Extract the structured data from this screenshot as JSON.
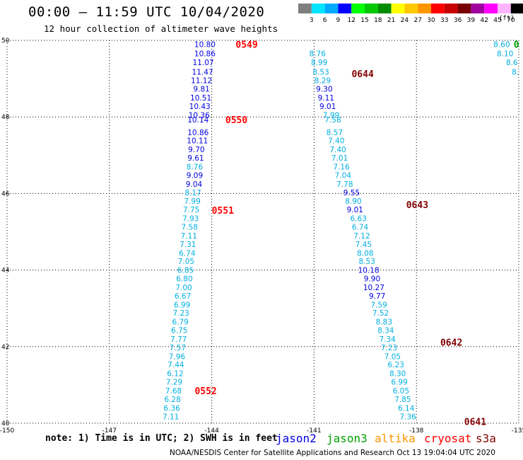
{
  "header": {
    "title": "00:00 – 11:59 UTC 10/04/2020",
    "subtitle": "12 hour collection of altimeter wave heights"
  },
  "colorbar": {
    "levels": [
      "3",
      "6",
      "9",
      "12",
      "15",
      "18",
      "21",
      "24",
      "27",
      "30",
      "33",
      "36",
      "39",
      "42",
      "45",
      "70"
    ],
    "colors": [
      "#7f7f7f",
      "#00e5ff",
      "#00aaff",
      "#0000ff",
      "#00ff00",
      "#00c800",
      "#008c00",
      "#ffff00",
      "#ffc800",
      "#ff9600",
      "#ff0000",
      "#c80000",
      "#780000",
      "#a000a0",
      "#ff00ff",
      "#ffb4ff",
      "#000000"
    ],
    "units": "(ft)"
  },
  "footer": {
    "note": "note: 1) Time is in UTC; 2) SWH is in feet",
    "credit": "NOAA/NESDIS Center for Satellite Applications and Research   Oct 13 19:04:04 UTC 2020"
  },
  "satellites": [
    {
      "name": "jason2",
      "color": "#0000e0"
    },
    {
      "name": "jason3",
      "color": "#00a000"
    },
    {
      "name": "altika",
      "color": "#ff9600"
    },
    {
      "name": "cryosat",
      "color": "#ff0000"
    },
    {
      "name": "s3a",
      "color": "#800000"
    }
  ],
  "chart_data": {
    "type": "scatter",
    "xlim": [
      -150,
      -135
    ],
    "ylim": [
      40,
      50
    ],
    "xticks": [
      "-150",
      "-147",
      "-144",
      "-141",
      "-138",
      "-135"
    ],
    "yticks": [
      "40",
      "42",
      "44",
      "46",
      "48",
      "50"
    ],
    "grid": true,
    "tracks": [
      {
        "satellite": "cryosat",
        "labels": [
          {
            "text": "0549",
            "lon": -143.3,
            "lat": 49.9
          },
          {
            "text": "0550",
            "lon": -143.6,
            "lat": 47.93
          },
          {
            "text": "0551",
            "lon": -144.0,
            "lat": 45.56
          },
          {
            "text": "0552",
            "lon": -144.5,
            "lat": 40.85
          }
        ],
        "points": [
          {
            "v": "10.80",
            "lon": -144.2,
            "lat": 49.9,
            "c": "#0000e0"
          },
          {
            "v": "10.86",
            "lon": -144.2,
            "lat": 49.66,
            "c": "#0000e0"
          },
          {
            "v": "11.07",
            "lon": -144.25,
            "lat": 49.43,
            "c": "#0000e0"
          },
          {
            "v": "11.47",
            "lon": -144.27,
            "lat": 49.18,
            "c": "#0000e0"
          },
          {
            "v": "11.12",
            "lon": -144.3,
            "lat": 48.96,
            "c": "#0000e0"
          },
          {
            "v": "9.81",
            "lon": -144.3,
            "lat": 48.73,
            "c": "#0000e0"
          },
          {
            "v": "10.51",
            "lon": -144.32,
            "lat": 48.5,
            "c": "#0000e0"
          },
          {
            "v": "10.43",
            "lon": -144.35,
            "lat": 48.28,
            "c": "#0000e0"
          },
          {
            "v": "10.36",
            "lon": -144.37,
            "lat": 48.05,
            "c": "#0000e0"
          },
          {
            "v": "10.14",
            "lon": -144.4,
            "lat": 47.93,
            "c": "#0000e0"
          },
          {
            "v": "10.86",
            "lon": -144.4,
            "lat": 47.6,
            "c": "#0000e0"
          },
          {
            "v": "10.11",
            "lon": -144.42,
            "lat": 47.38,
            "c": "#0000e0"
          },
          {
            "v": "9.70",
            "lon": -144.45,
            "lat": 47.15,
            "c": "#0000e0"
          },
          {
            "v": "9.61",
            "lon": -144.47,
            "lat": 46.93,
            "c": "#0000e0"
          },
          {
            "v": "8.76",
            "lon": -144.5,
            "lat": 46.7,
            "c": "#00b0e0"
          },
          {
            "v": "9.09",
            "lon": -144.5,
            "lat": 46.48,
            "c": "#0000e0"
          },
          {
            "v": "9.04",
            "lon": -144.52,
            "lat": 46.25,
            "c": "#0000e0"
          },
          {
            "v": "8.17",
            "lon": -144.55,
            "lat": 46.03,
            "c": "#00b0e0"
          },
          {
            "v": "7.99",
            "lon": -144.57,
            "lat": 45.8,
            "c": "#00b0e0"
          },
          {
            "v": "7.75",
            "lon": -144.6,
            "lat": 45.58,
            "c": "#00b0e0"
          },
          {
            "v": "7.93",
            "lon": -144.62,
            "lat": 45.35,
            "c": "#00b0e0"
          },
          {
            "v": "7.58",
            "lon": -144.65,
            "lat": 45.13,
            "c": "#00b0e0"
          },
          {
            "v": "7.11",
            "lon": -144.67,
            "lat": 44.9,
            "c": "#00b0e0"
          },
          {
            "v": "7.31",
            "lon": -144.7,
            "lat": 44.68,
            "c": "#00b0e0"
          },
          {
            "v": "6.74",
            "lon": -144.72,
            "lat": 44.45,
            "c": "#00b0e0"
          },
          {
            "v": "7.05",
            "lon": -144.75,
            "lat": 44.23,
            "c": "#00b0e0"
          },
          {
            "v": "6.85",
            "lon": -144.77,
            "lat": 44.0,
            "c": "#00b0e0"
          },
          {
            "v": "6.80",
            "lon": -144.8,
            "lat": 43.78,
            "c": "#00b0e0"
          },
          {
            "v": "7.00",
            "lon": -144.82,
            "lat": 43.55,
            "c": "#00b0e0"
          },
          {
            "v": "6.67",
            "lon": -144.85,
            "lat": 43.33,
            "c": "#00b0e0"
          },
          {
            "v": "6.99",
            "lon": -144.87,
            "lat": 43.1,
            "c": "#00b0e0"
          },
          {
            "v": "7.23",
            "lon": -144.9,
            "lat": 42.88,
            "c": "#00b0e0"
          },
          {
            "v": "6.79",
            "lon": -144.92,
            "lat": 42.65,
            "c": "#00b0e0"
          },
          {
            "v": "6.75",
            "lon": -144.95,
            "lat": 42.43,
            "c": "#00b0e0"
          },
          {
            "v": "7.77",
            "lon": -144.97,
            "lat": 42.2,
            "c": "#00b0e0"
          },
          {
            "v": "7.57",
            "lon": -145.0,
            "lat": 41.98,
            "c": "#00b0e0"
          },
          {
            "v": "7.96",
            "lon": -145.02,
            "lat": 41.75,
            "c": "#00b0e0"
          },
          {
            "v": "7.44",
            "lon": -145.05,
            "lat": 41.53,
            "c": "#00b0e0"
          },
          {
            "v": "6.12",
            "lon": -145.07,
            "lat": 41.3,
            "c": "#00b0e0"
          },
          {
            "v": "7.29",
            "lon": -145.1,
            "lat": 41.08,
            "c": "#00b0e0"
          },
          {
            "v": "7.68",
            "lon": -145.12,
            "lat": 40.85,
            "c": "#00b0e0"
          },
          {
            "v": "6.28",
            "lon": -145.15,
            "lat": 40.63,
            "c": "#00b0e0"
          },
          {
            "v": "6.36",
            "lon": -145.17,
            "lat": 40.4,
            "c": "#00b0e0"
          },
          {
            "v": "7.11",
            "lon": -145.2,
            "lat": 40.18,
            "c": "#00b0e0"
          }
        ]
      },
      {
        "satellite": "s3a",
        "labels": [
          {
            "text": "0644",
            "lon": -139.9,
            "lat": 49.13
          },
          {
            "text": "0643",
            "lon": -138.3,
            "lat": 45.71
          },
          {
            "text": "0642",
            "lon": -137.3,
            "lat": 42.12
          },
          {
            "text": "0641",
            "lon": -136.6,
            "lat": 40.05
          }
        ],
        "points": [
          {
            "v": "8.76",
            "lon": -140.9,
            "lat": 49.66,
            "c": "#00b0e0"
          },
          {
            "v": "8.99",
            "lon": -140.85,
            "lat": 49.43,
            "c": "#00b0e0"
          },
          {
            "v": "8.53",
            "lon": -140.8,
            "lat": 49.18,
            "c": "#00b0e0"
          },
          {
            "v": "8.29",
            "lon": -140.75,
            "lat": 48.96,
            "c": "#00b0e0"
          },
          {
            "v": "9.30",
            "lon": -140.7,
            "lat": 48.73,
            "c": "#0000e0"
          },
          {
            "v": "9.11",
            "lon": -140.65,
            "lat": 48.5,
            "c": "#0000e0"
          },
          {
            "v": "9.01",
            "lon": -140.6,
            "lat": 48.28,
            "c": "#0000e0"
          },
          {
            "v": "7.99",
            "lon": -140.5,
            "lat": 48.05,
            "c": "#00b0e0"
          },
          {
            "v": "7.58",
            "lon": -140.45,
            "lat": 47.93,
            "c": "#00b0e0"
          },
          {
            "v": "8.57",
            "lon": -140.4,
            "lat": 47.6,
            "c": "#00b0e0"
          },
          {
            "v": "7.40",
            "lon": -140.35,
            "lat": 47.38,
            "c": "#00b0e0"
          },
          {
            "v": "7.40",
            "lon": -140.3,
            "lat": 47.15,
            "c": "#00b0e0"
          },
          {
            "v": "7.01",
            "lon": -140.25,
            "lat": 46.93,
            "c": "#00b0e0"
          },
          {
            "v": "7.16",
            "lon": -140.2,
            "lat": 46.7,
            "c": "#00b0e0"
          },
          {
            "v": "7.04",
            "lon": -140.15,
            "lat": 46.48,
            "c": "#00b0e0"
          },
          {
            "v": "7.78",
            "lon": -140.1,
            "lat": 46.25,
            "c": "#00b0e0"
          },
          {
            "v": "9.55",
            "lon": -139.9,
            "lat": 46.03,
            "c": "#0000e0"
          },
          {
            "v": "8.90",
            "lon": -139.85,
            "lat": 45.8,
            "c": "#00b0e0"
          },
          {
            "v": "9.01",
            "lon": -139.8,
            "lat": 45.58,
            "c": "#0000e0"
          },
          {
            "v": "6.63",
            "lon": -139.7,
            "lat": 45.35,
            "c": "#00b0e0"
          },
          {
            "v": "6.74",
            "lon": -139.65,
            "lat": 45.13,
            "c": "#00b0e0"
          },
          {
            "v": "7.12",
            "lon": -139.6,
            "lat": 44.9,
            "c": "#00b0e0"
          },
          {
            "v": "7.45",
            "lon": -139.55,
            "lat": 44.68,
            "c": "#00b0e0"
          },
          {
            "v": "8.08",
            "lon": -139.5,
            "lat": 44.45,
            "c": "#00b0e0"
          },
          {
            "v": "8.53",
            "lon": -139.45,
            "lat": 44.23,
            "c": "#00b0e0"
          },
          {
            "v": "10.18",
            "lon": -139.4,
            "lat": 44.0,
            "c": "#0000e0"
          },
          {
            "v": "9.90",
            "lon": -139.3,
            "lat": 43.78,
            "c": "#0000e0"
          },
          {
            "v": "10.27",
            "lon": -139.25,
            "lat": 43.55,
            "c": "#0000e0"
          },
          {
            "v": "9.77",
            "lon": -139.15,
            "lat": 43.33,
            "c": "#0000e0"
          },
          {
            "v": "7.59",
            "lon": -139.1,
            "lat": 43.1,
            "c": "#00b0e0"
          },
          {
            "v": "7.52",
            "lon": -139.05,
            "lat": 42.88,
            "c": "#00b0e0"
          },
          {
            "v": "8.83",
            "lon": -138.95,
            "lat": 42.65,
            "c": "#00b0e0"
          },
          {
            "v": "8.34",
            "lon": -138.9,
            "lat": 42.43,
            "c": "#00b0e0"
          },
          {
            "v": "7.34",
            "lon": -138.85,
            "lat": 42.2,
            "c": "#00b0e0"
          },
          {
            "v": "7.23",
            "lon": -138.8,
            "lat": 41.98,
            "c": "#00b0e0"
          },
          {
            "v": "7.05",
            "lon": -138.7,
            "lat": 41.75,
            "c": "#00b0e0"
          },
          {
            "v": "6.23",
            "lon": -138.6,
            "lat": 41.53,
            "c": "#00b0e0"
          },
          {
            "v": "8.30",
            "lon": -138.55,
            "lat": 41.3,
            "c": "#00b0e0"
          },
          {
            "v": "6.99",
            "lon": -138.5,
            "lat": 41.08,
            "c": "#00b0e0"
          },
          {
            "v": "6.05",
            "lon": -138.45,
            "lat": 40.85,
            "c": "#00b0e0"
          },
          {
            "v": "7.85",
            "lon": -138.4,
            "lat": 40.63,
            "c": "#00b0e0"
          },
          {
            "v": "6.14",
            "lon": -138.3,
            "lat": 40.4,
            "c": "#00b0e0"
          },
          {
            "v": "7.36",
            "lon": -138.25,
            "lat": 40.18,
            "c": "#00b0e0"
          }
        ]
      },
      {
        "satellite": "jason3",
        "labels": [
          {
            "text": "0",
            "lon": -135.15,
            "lat": 49.9
          }
        ],
        "points": [
          {
            "v": "8.60",
            "lon": -135.5,
            "lat": 49.9,
            "c": "#00b0e0"
          },
          {
            "v": "8.10",
            "lon": -135.4,
            "lat": 49.66,
            "c": "#00b0e0"
          },
          {
            "v": "8.6",
            "lon": -135.2,
            "lat": 49.43,
            "c": "#00b0e0"
          },
          {
            "v": "8.",
            "lon": -135.1,
            "lat": 49.18,
            "c": "#00b0e0"
          }
        ]
      }
    ]
  }
}
